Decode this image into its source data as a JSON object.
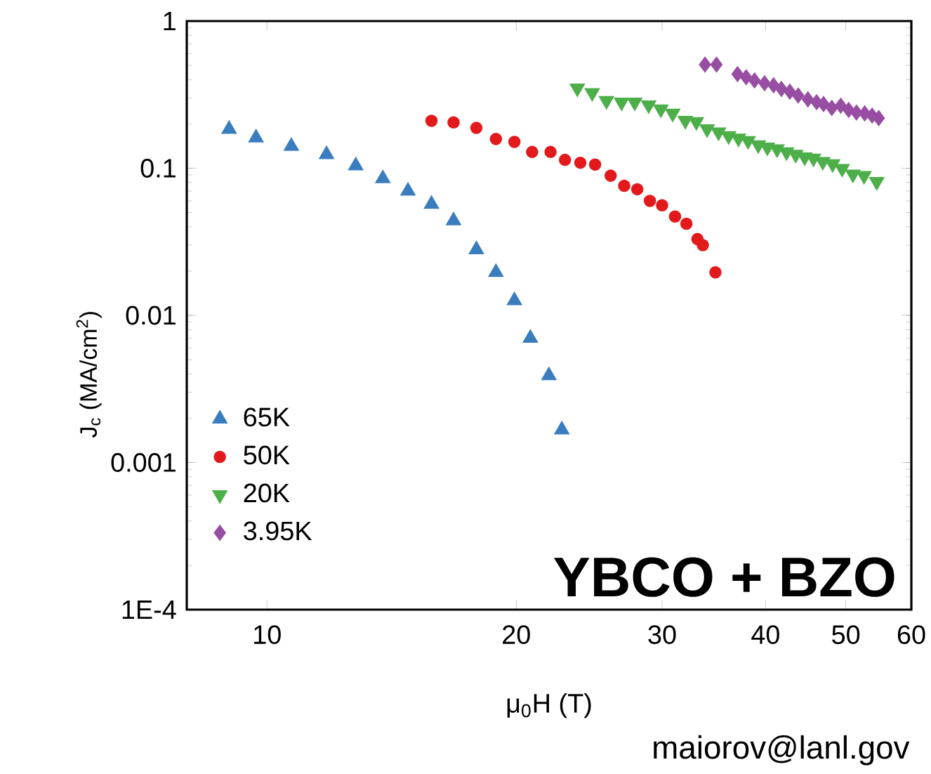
{
  "chart_data": {
    "type": "scatter",
    "xlabel": "μ$_{0}$H (T)",
    "ylabel": "J$_{c}$ (MA/cm$^{2}$)",
    "log": "xy",
    "xlim": [
      8,
      60
    ],
    "ylim": [
      0.0001,
      1
    ],
    "xticks": [
      10,
      20,
      30,
      40,
      50,
      60
    ],
    "yticks": [
      {
        "value": 0.0001,
        "label": "1E-4"
      },
      0.001,
      0.01,
      0.1,
      1
    ],
    "legend": "bottom left",
    "grid": false,
    "annotations": [
      "YBCO + BZO",
      "maiorov@lanl.gov"
    ],
    "series": [
      {
        "name": "65K",
        "color": "#3a7dbf",
        "marker": "triangle",
        "x": [
          9.0,
          9.7,
          10.7,
          11.8,
          12.8,
          13.8,
          14.8,
          15.8,
          16.8,
          17.9,
          18.9,
          19.9,
          20.8,
          21.9,
          22.7
        ],
        "values": [
          0.184,
          0.161,
          0.141,
          0.124,
          0.104,
          0.085,
          0.07,
          0.057,
          0.044,
          0.028,
          0.0196,
          0.0126,
          0.007,
          0.0039,
          0.00167
        ]
      },
      {
        "name": "50K",
        "color": "#e31a1c",
        "marker": "circle",
        "x": [
          15.8,
          16.8,
          17.9,
          18.9,
          19.9,
          20.9,
          22.0,
          22.9,
          23.9,
          24.9,
          26.0,
          27.0,
          28.0,
          29.0,
          30.0,
          31.1,
          32.1,
          33.1,
          33.6,
          34.8
        ],
        "values": [
          0.21,
          0.205,
          0.188,
          0.158,
          0.151,
          0.129,
          0.129,
          0.114,
          0.109,
          0.106,
          0.089,
          0.076,
          0.072,
          0.06,
          0.056,
          0.047,
          0.042,
          0.033,
          0.03,
          0.0196
        ]
      },
      {
        "name": "20K",
        "color": "#4daf4a",
        "marker": "triangle-down",
        "x": [
          23.7,
          24.7,
          25.7,
          26.8,
          27.8,
          28.9,
          29.9,
          30.9,
          32.0,
          33.0,
          34.0,
          35.1,
          36.1,
          37.1,
          38.1,
          39.2,
          40.2,
          41.3,
          42.4,
          43.5,
          44.6,
          45.7,
          46.9,
          48.2,
          49.5,
          51.0,
          52.6,
          54.5
        ],
        "values": [
          0.35,
          0.326,
          0.288,
          0.281,
          0.281,
          0.269,
          0.252,
          0.236,
          0.211,
          0.207,
          0.185,
          0.176,
          0.166,
          0.16,
          0.154,
          0.144,
          0.139,
          0.135,
          0.129,
          0.124,
          0.119,
          0.117,
          0.111,
          0.107,
          0.0995,
          0.091,
          0.089,
          0.081
        ]
      },
      {
        "name": "3.95K",
        "color": "#984ea3",
        "marker": "diamond",
        "x": [
          33.8,
          34.9,
          37.0,
          37.9,
          38.8,
          39.9,
          40.9,
          41.8,
          42.8,
          43.8,
          45.0,
          46.1,
          47.0,
          48.1,
          49.3,
          50.4,
          51.5,
          52.7,
          53.8,
          54.8
        ],
        "values": [
          0.506,
          0.506,
          0.436,
          0.415,
          0.395,
          0.378,
          0.366,
          0.346,
          0.331,
          0.312,
          0.294,
          0.281,
          0.273,
          0.257,
          0.266,
          0.249,
          0.239,
          0.236,
          0.228,
          0.219
        ]
      }
    ]
  }
}
